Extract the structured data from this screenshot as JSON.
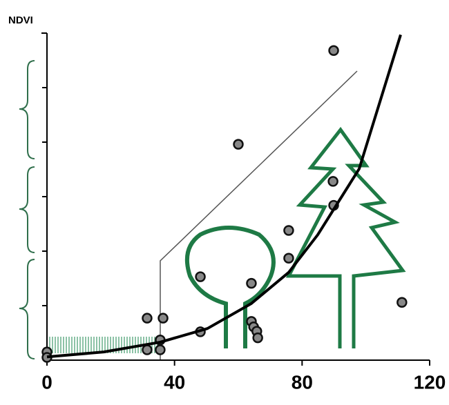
{
  "chart_data": {
    "type": "scatter",
    "title": "NDVI",
    "xlim": [
      0,
      120
    ],
    "xticks": [
      0,
      40,
      80,
      120
    ],
    "ylim": [
      0,
      0.6
    ],
    "yticks": [
      0.1,
      0.2,
      0.3,
      0.4,
      0.5
    ],
    "series": [
      {
        "type": "scatter",
        "color": "#111111",
        "x": [
          89.9,
          60,
          89.7,
          89.9,
          75.8,
          75.8,
          48.1,
          64.1,
          111.3,
          31.4,
          36.4,
          48.1,
          64.1,
          64.8,
          65.8,
          66.1,
          35.5,
          31.4,
          35.5,
          0,
          0
        ],
        "values": [
          0.568,
          0.396,
          0.328,
          0.284,
          0.238,
          0.187,
          0.153,
          0.141,
          0.106,
          0.077,
          0.077,
          0.052,
          0.071,
          0.061,
          0.053,
          0.041,
          0.037,
          0.019,
          0.019,
          0.015,
          0.005
        ]
      },
      {
        "type": "line",
        "color": "#000000",
        "x": [
          0,
          17.8,
          35.5,
          50.3,
          64.1,
          75.8,
          84.9,
          97.9,
          110.9
        ],
        "values": [
          0.006,
          0.015,
          0.033,
          0.058,
          0.104,
          0.161,
          0.23,
          0.351,
          0.597
        ]
      }
    ]
  }
}
